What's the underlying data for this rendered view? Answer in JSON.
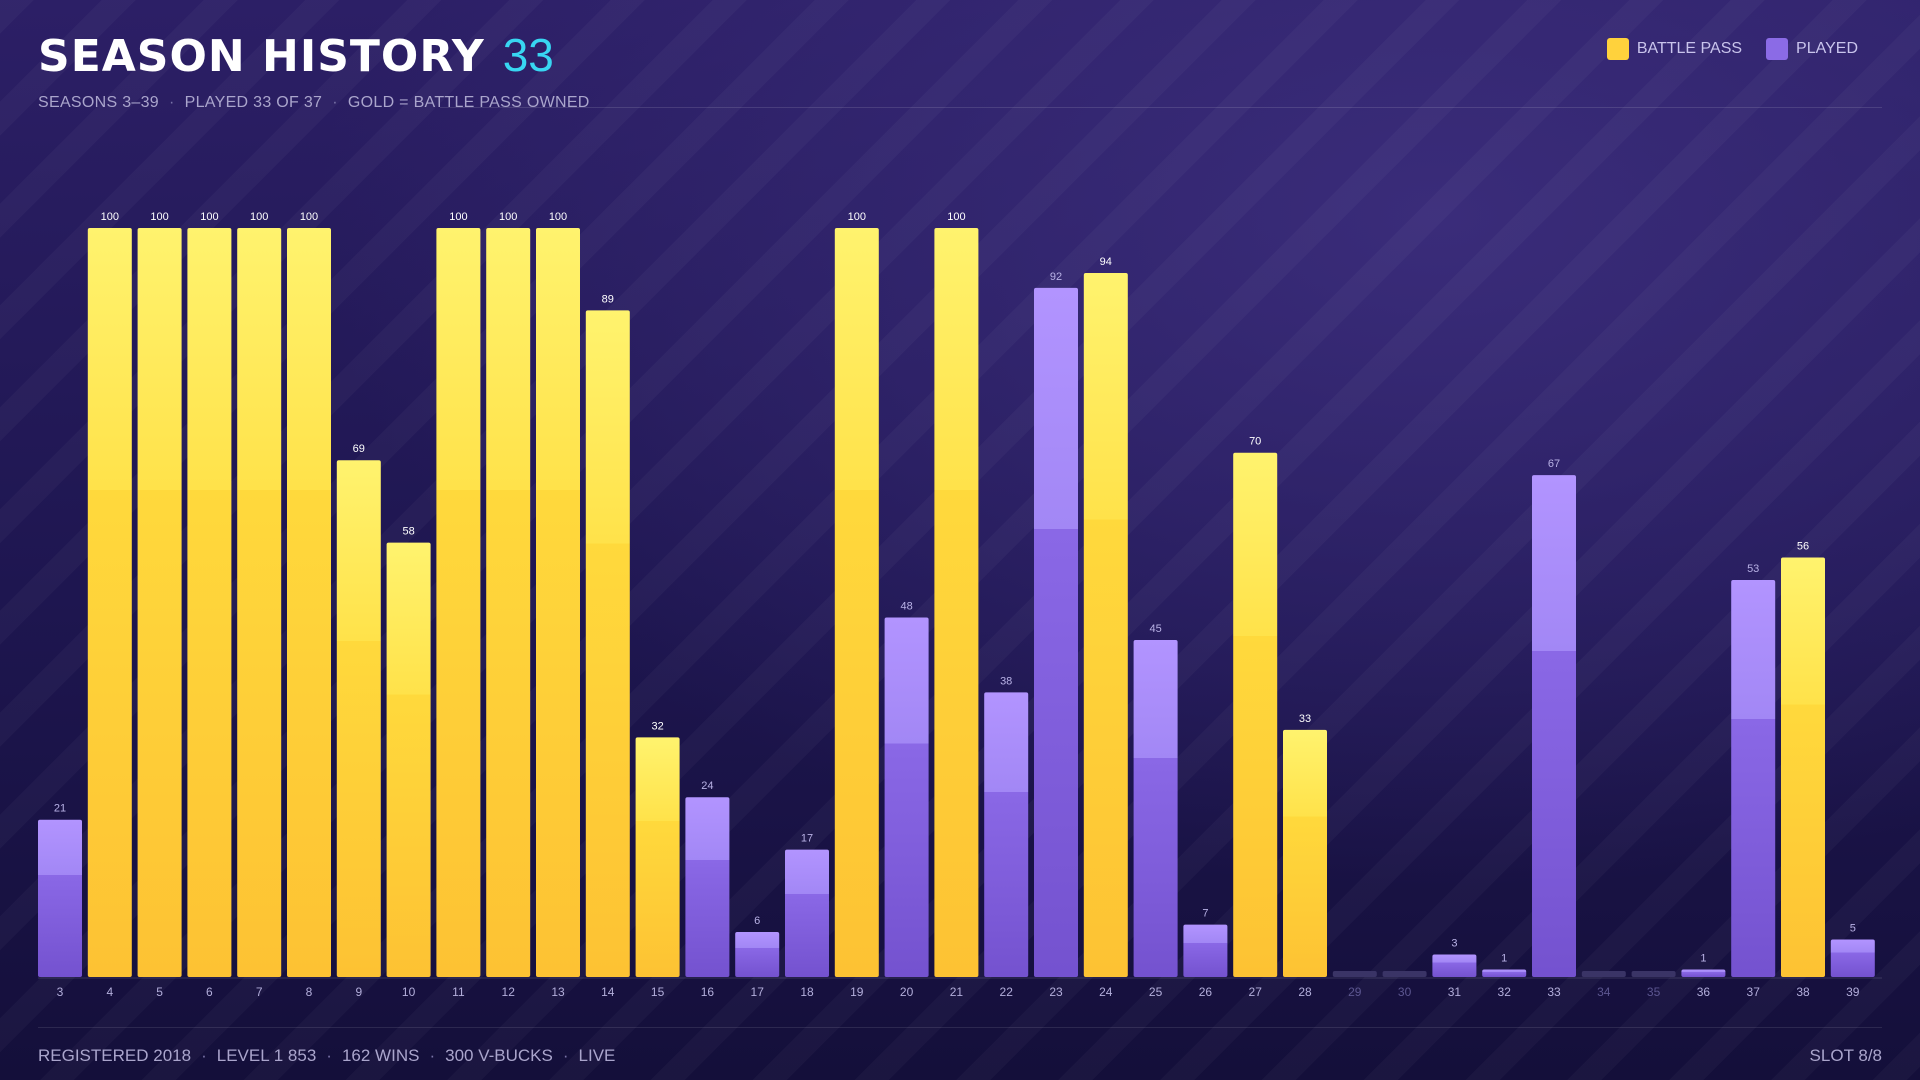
{
  "header": {
    "title": "SEASON HISTORY",
    "count": "33",
    "subtitle": [
      "SEASONS 3–39",
      "PLAYED 33 OF 37",
      "GOLD = BATTLE PASS OWNED"
    ]
  },
  "legend": [
    {
      "label": "BATTLE PASS",
      "color": "#ffd23c"
    },
    {
      "label": "PLAYED",
      "color": "#8b6be6"
    }
  ],
  "footer": {
    "stats": [
      "REGISTERED 2018",
      "LEVEL 1 853",
      "162 WINS",
      "300 V-BUCKS",
      "LIVE"
    ],
    "slot": "SLOT 8/8"
  },
  "chart_data": {
    "type": "bar",
    "ylim": [
      0,
      100
    ],
    "categories": [
      "3",
      "4",
      "5",
      "6",
      "7",
      "8",
      "9",
      "10",
      "11",
      "12",
      "13",
      "14",
      "15",
      "16",
      "17",
      "18",
      "19",
      "20",
      "21",
      "22",
      "23",
      "24",
      "25",
      "26",
      "27",
      "28",
      "29",
      "30",
      "31",
      "32",
      "33",
      "34",
      "35",
      "36",
      "37",
      "38",
      "39"
    ],
    "values": [
      21,
      100,
      100,
      100,
      100,
      100,
      69,
      58,
      100,
      100,
      100,
      89,
      32,
      24,
      6,
      17,
      100,
      48,
      100,
      38,
      92,
      94,
      45,
      7,
      70,
      33,
      0,
      0,
      3,
      1,
      67,
      0,
      0,
      1,
      53,
      56,
      5
    ],
    "battle_pass": [
      false,
      true,
      true,
      true,
      true,
      true,
      true,
      true,
      true,
      true,
      true,
      true,
      true,
      false,
      false,
      false,
      true,
      false,
      true,
      false,
      false,
      true,
      false,
      false,
      true,
      true,
      false,
      false,
      false,
      false,
      false,
      false,
      false,
      false,
      false,
      true,
      false
    ],
    "played": [
      true,
      true,
      true,
      true,
      true,
      true,
      true,
      true,
      true,
      true,
      true,
      true,
      true,
      true,
      true,
      true,
      true,
      true,
      true,
      true,
      true,
      true,
      true,
      true,
      true,
      true,
      false,
      false,
      true,
      true,
      true,
      false,
      false,
      true,
      true,
      true,
      true
    ],
    "colors": {
      "battle_pass": "#ffd23c",
      "played": "#8b6be6",
      "unplayed": "#3a3466"
    }
  }
}
